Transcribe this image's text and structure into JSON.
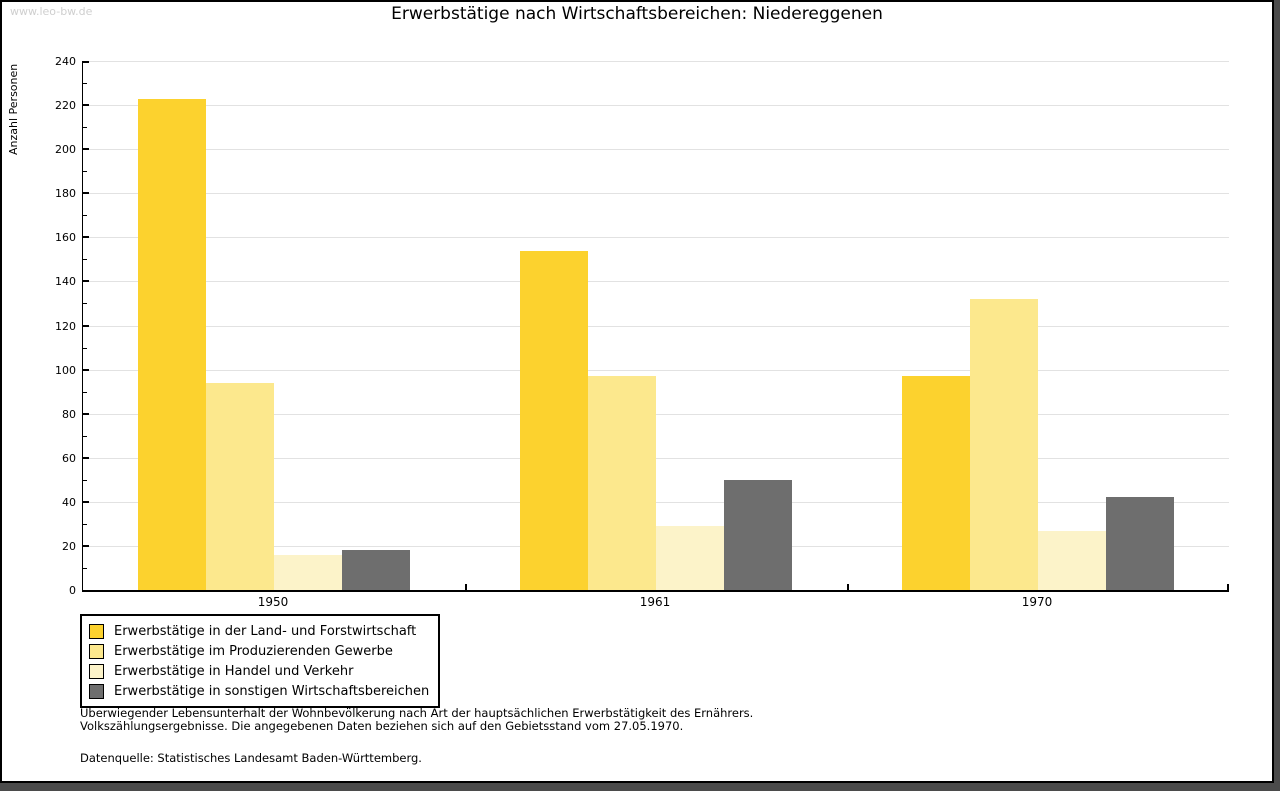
{
  "watermark": "www.leo-bw.de",
  "chart_data": {
    "type": "bar",
    "title": "Erwerbstätige nach Wirtschaftsbereichen: Niedereggenen",
    "ylabel": "Anzahl Personen",
    "xlabel": "",
    "ylim": [
      0,
      240
    ],
    "ytick_step": 20,
    "yminor_step": 10,
    "grid": true,
    "legend_position": "bottom-left",
    "categories": [
      "1950",
      "1961",
      "1970"
    ],
    "series": [
      {
        "name": "Erwerbstätige in der Land- und Forstwirtschaft",
        "color": "#FCD22E",
        "values": [
          223,
          154,
          97
        ]
      },
      {
        "name": "Erwerbstätige im Produzierenden Gewerbe",
        "color": "#FCE88D",
        "values": [
          94,
          97,
          132
        ]
      },
      {
        "name": "Erwerbstätige in Handel und Verkehr",
        "color": "#FCF3C9",
        "values": [
          16,
          29,
          27
        ]
      },
      {
        "name": "Erwerbstätige in sonstigen Wirtschaftsbereichen",
        "color": "#6E6E6E",
        "values": [
          18,
          50,
          42
        ]
      }
    ]
  },
  "footer": {
    "note_line1": "Überwiegender Lebensunterhalt der Wohnbevölkerung nach Art der hauptsächlichen Erwerbstätigkeit des Ernährers.",
    "note_line2": "Volkszählungsergebnisse. Die angegebenen Daten beziehen sich auf den Gebietsstand vom 27.05.1970.",
    "source": "Datenquelle: Statistisches Landesamt Baden-Württemberg."
  },
  "colors": {
    "grid": "#E2E2E2",
    "axis": "#000000",
    "watermark": "#CFCFCF",
    "background": "#FFFFFF",
    "shadow": "#4B4B4B"
  }
}
